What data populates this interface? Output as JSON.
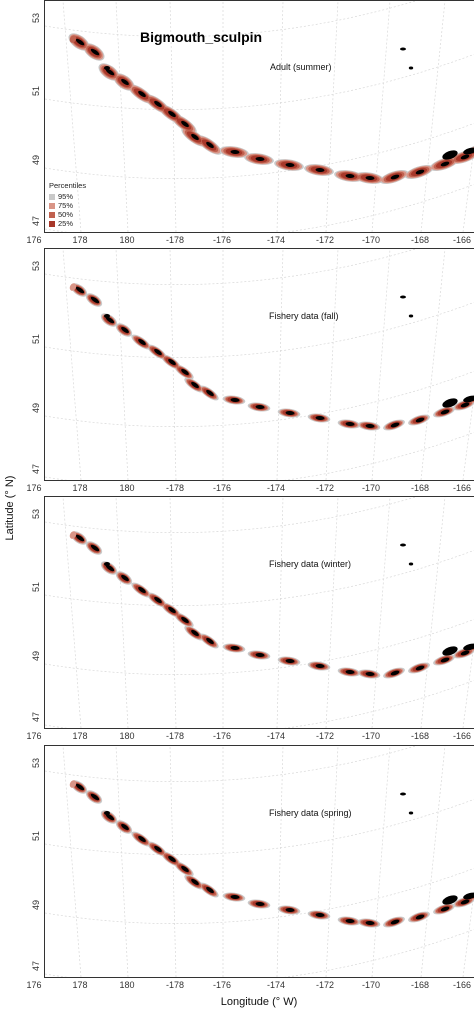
{
  "figure": {
    "species_title": "Bigmouth_sculpin",
    "ylabel": "Latitude (° N)",
    "xlabel": "Longitude (° W)"
  },
  "legend": {
    "title": "Percentiles",
    "items": [
      {
        "label": "95%",
        "color": "#c9c9c9"
      },
      {
        "label": "75%",
        "color": "#d99587"
      },
      {
        "label": "50%",
        "color": "#c0614f"
      },
      {
        "label": "25%",
        "color": "#a8382a"
      }
    ]
  },
  "panels": [
    {
      "title": "Adult (summer)"
    },
    {
      "title": "Fishery data (fall)"
    },
    {
      "title": "Fishery data (winter)"
    },
    {
      "title": "Fishery data (spring)"
    }
  ],
  "axes": {
    "lat_ticks": [
      "53",
      "51",
      "49",
      "47"
    ],
    "lon_ticks": [
      "176",
      "178",
      "180",
      "-178",
      "-176",
      "-174",
      "-172",
      "-170",
      "-168",
      "-166"
    ]
  },
  "colors": {
    "land": "#000000",
    "p95": "#c9c9c9",
    "p75": "#d99587",
    "p50": "#c0614f",
    "p25": "#a8382a",
    "grid": "#d8d8d8"
  }
}
